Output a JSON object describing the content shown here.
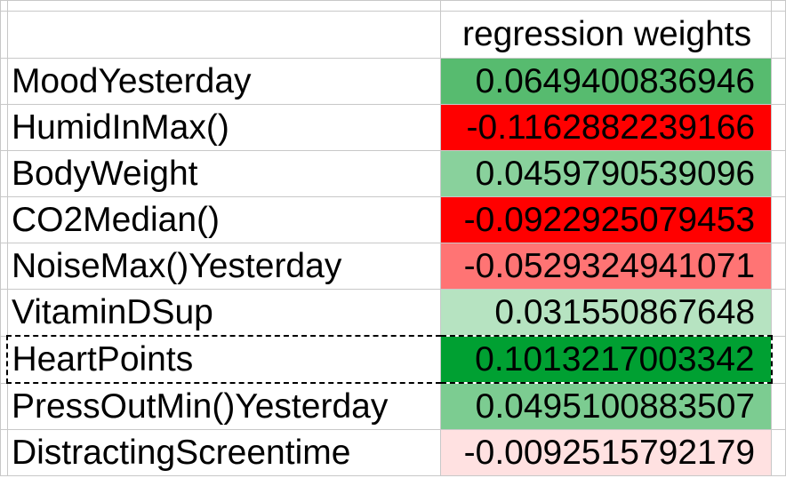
{
  "sheet": {
    "header": "regression weights",
    "rows": [
      {
        "label": "MoodYesterday",
        "value": "0.0649400836946",
        "color": "#57bb6f"
      },
      {
        "label": "HumidInMax()",
        "value": "-0.1162882239166",
        "color": "#ff0000"
      },
      {
        "label": "BodyWeight",
        "value": "0.0459790539096",
        "color": "#89d19c"
      },
      {
        "label": "CO2Median()",
        "value": "-0.0922925079453",
        "color": "#ff0000"
      },
      {
        "label": "NoiseMax()Yesterday",
        "value": "-0.0529324941071",
        "color": "#ff7474"
      },
      {
        "label": "VitaminDSup",
        "value": "0.031550867648",
        "color": "#b6e3c1"
      },
      {
        "label": "HeartPoints",
        "value": "0.1013217003342",
        "color": "#00a032"
      },
      {
        "label": "PressOutMin()Yesterday",
        "value": "0.0495100883507",
        "color": "#7ccc91"
      },
      {
        "label": "DistractingScreentime",
        "value": "-0.0092515792179",
        "color": "#ffe1e1"
      }
    ],
    "selected_row": 6
  }
}
